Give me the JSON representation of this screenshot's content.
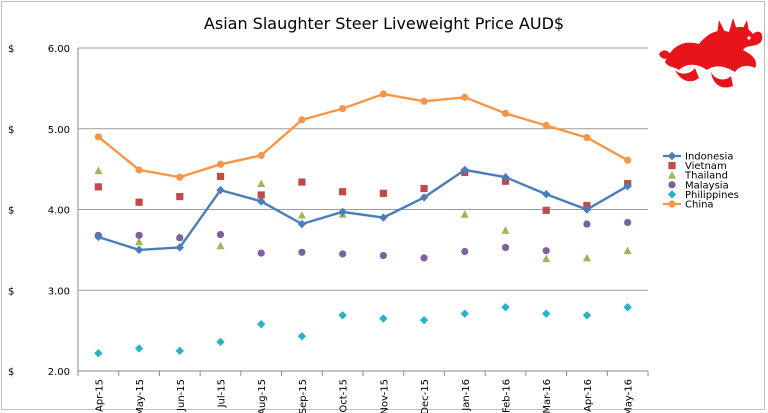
{
  "chart_data": {
    "type": "line",
    "title": "Asian Slaughter Steer Liveweight Price AUD$",
    "y_unit_label": "$",
    "categories": [
      "Apr-15",
      "May-15",
      "Jun-15",
      "Jul-15",
      "Aug-15",
      "Sep-15",
      "Oct-15",
      "Nov-15",
      "Dec-15",
      "Jan-16",
      "Feb-16",
      "Mar-16",
      "Apr-16",
      "May-16"
    ],
    "ylim": [
      2.0,
      6.0
    ],
    "yticks": [
      "2.00",
      "3.00",
      "4.00",
      "5.00",
      "6.00"
    ],
    "grid": true,
    "legend_position": "right",
    "series": [
      {
        "name": "Indonesia",
        "color": "#4a7ebb",
        "marker": "diamond",
        "line": true,
        "values": [
          3.66,
          3.5,
          3.53,
          4.24,
          4.1,
          3.82,
          3.97,
          3.9,
          4.15,
          4.49,
          4.4,
          4.19,
          4.0,
          4.29
        ]
      },
      {
        "name": "Vietnam",
        "color": "#be4b48",
        "marker": "square",
        "line": false,
        "values": [
          4.28,
          4.09,
          4.16,
          4.41,
          4.18,
          4.34,
          4.22,
          4.2,
          4.26,
          4.46,
          4.35,
          3.99,
          4.05,
          4.32
        ]
      },
      {
        "name": "Thailand",
        "color": "#98b954",
        "marker": "triangle",
        "line": false,
        "values": [
          4.48,
          3.6,
          3.66,
          3.55,
          4.32,
          3.93,
          3.94,
          null,
          null,
          3.94,
          3.74,
          3.39,
          3.4,
          3.49
        ]
      },
      {
        "name": "Malaysia",
        "color": "#7d60a0",
        "marker": "circle",
        "line": false,
        "values": [
          3.68,
          3.68,
          3.65,
          3.69,
          3.46,
          3.47,
          3.45,
          3.43,
          3.4,
          3.48,
          3.53,
          3.49,
          3.82,
          3.84
        ]
      },
      {
        "name": "Philippines",
        "color": "#2ab0c8",
        "marker": "diamond",
        "line": false,
        "values": [
          2.22,
          2.28,
          2.25,
          2.36,
          2.58,
          2.43,
          2.69,
          2.65,
          2.63,
          2.71,
          2.79,
          2.71,
          2.69,
          2.79
        ]
      },
      {
        "name": "China",
        "color": "#f79646",
        "marker": "circle",
        "line": true,
        "values": [
          4.9,
          4.49,
          4.4,
          4.56,
          4.67,
          5.11,
          5.25,
          5.43,
          5.34,
          5.39,
          5.19,
          5.04,
          4.89,
          4.61
        ]
      }
    ]
  },
  "logo": {
    "icon": "red-dragon-icon",
    "color": "#e8141c"
  }
}
